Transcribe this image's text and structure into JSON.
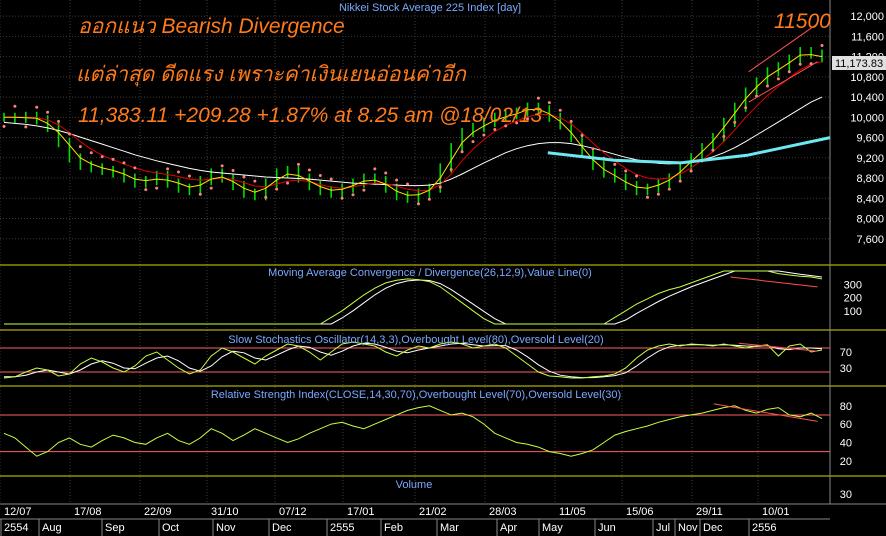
{
  "annotation": {
    "line1": "ออกแนว Bearish Divergence",
    "line2": "แต่ล่าสุด ดีดแรง เพราะค่าเงินเยนอ่อนค่าอีก",
    "line3": "11,383.11 +209.28 +1.87% at 8.25 am @18/02/13",
    "target": "11500"
  },
  "colors": {
    "background": "#000000",
    "grid": "#3a3a3a",
    "frame": "#d8d800",
    "price": "#00dd00",
    "ma_fast": "#ffe000",
    "ma_mid": "#e00000",
    "ma_slow": "#ffffff",
    "sar": "#ff8080",
    "forecast": "#6ee8f0",
    "indicator_line": "#c8ff40",
    "signal_line": "#ffffff",
    "level_line": "#ff6060",
    "trend_line": "#ff5050",
    "label_text": "#7aa8ff",
    "axis_text": "#ffffff",
    "last_price_box": "#e0e0e0",
    "text_overlay": "#ff7a1a"
  },
  "chart_data": {
    "type": "line",
    "title": "Nikkei Stock Average 225 Index [day]",
    "last_price_label": "11,173.83",
    "time_axis": {
      "top_row": [
        "12/07",
        "17/08",
        "22/09",
        "31/10",
        "07/12",
        "17/01",
        "21/02",
        "28/03",
        "11/05",
        "15/06",
        "29/11",
        "10/01"
      ],
      "bottom_row": [
        "2554",
        "Aug",
        "Sep",
        "Oct",
        "Nov",
        "Dec",
        "2555",
        "Feb",
        "Mar",
        "Apr",
        "May",
        "Jun",
        "Jul",
        "Nov",
        "Dec",
        "2556"
      ]
    },
    "panels": [
      {
        "name": "price",
        "ylim": [
          7200,
          12200
        ],
        "yticks": [
          "12,000",
          "11,600",
          "11,200",
          "10,800",
          "10,400",
          "10,000",
          "9,600",
          "9,200",
          "8,800",
          "8,400",
          "8,000",
          "7,600"
        ],
        "ytick_values": [
          12000,
          11600,
          11200,
          10800,
          10400,
          10000,
          9600,
          9200,
          8800,
          8400,
          8000,
          7600
        ],
        "close": [
          10000,
          9980,
          10020,
          9950,
          9800,
          9500,
          9200,
          9050,
          9000,
          8950,
          8900,
          8800,
          8700,
          8750,
          8850,
          8700,
          8600,
          8550,
          8750,
          8900,
          8800,
          8650,
          8500,
          8450,
          8700,
          8900,
          8950,
          8800,
          8650,
          8550,
          8500,
          8600,
          8700,
          8800,
          8750,
          8600,
          8450,
          8400,
          8500,
          8600,
          9000,
          9400,
          9700,
          9800,
          9900,
          10000,
          10050,
          10100,
          10200,
          10150,
          10000,
          9850,
          9600,
          9300,
          9050,
          8900,
          8800,
          8650,
          8550,
          8600,
          8700,
          8800,
          9000,
          9200,
          9400,
          9600,
          9900,
          10200,
          10500,
          10700,
          10900,
          11000,
          11150,
          11300,
          11250,
          11173.83
        ],
        "ma_fast": [
          10000,
          10000,
          9990,
          9980,
          9880,
          9700,
          9450,
          9200,
          9080,
          9000,
          8950,
          8880,
          8780,
          8750,
          8780,
          8760,
          8700,
          8620,
          8660,
          8780,
          8820,
          8730,
          8600,
          8520,
          8600,
          8760,
          8880,
          8850,
          8740,
          8630,
          8560,
          8580,
          8650,
          8740,
          8760,
          8680,
          8540,
          8460,
          8470,
          8560,
          8800,
          9150,
          9500,
          9700,
          9830,
          9940,
          10010,
          10070,
          10150,
          10160,
          10070,
          9920,
          9700,
          9420,
          9160,
          8970,
          8850,
          8720,
          8620,
          8600,
          8660,
          8760,
          8920,
          9120,
          9320,
          9530,
          9800,
          10080,
          10370,
          10600,
          10800,
          10940,
          11080,
          11230,
          11240,
          11200
        ],
        "ma_mid": [
          10000,
          10000,
          10000,
          9990,
          9950,
          9850,
          9700,
          9520,
          9370,
          9250,
          9160,
          9080,
          9000,
          8940,
          8900,
          8870,
          8830,
          8780,
          8760,
          8780,
          8800,
          8770,
          8710,
          8640,
          8630,
          8680,
          8740,
          8760,
          8730,
          8670,
          8620,
          8600,
          8620,
          8670,
          8700,
          8690,
          8640,
          8580,
          8550,
          8560,
          8670,
          8880,
          9140,
          9370,
          9560,
          9720,
          9840,
          9930,
          10010,
          10060,
          10050,
          9990,
          9870,
          9690,
          9490,
          9300,
          9140,
          8990,
          8870,
          8800,
          8780,
          8800,
          8880,
          9000,
          9150,
          9320,
          9520,
          9750,
          10000,
          10220,
          10430,
          10610,
          10780,
          10940,
          11050,
          11100
        ],
        "ma_slow": [
          9900,
          9880,
          9860,
          9830,
          9790,
          9740,
          9680,
          9610,
          9540,
          9470,
          9400,
          9330,
          9260,
          9200,
          9140,
          9090,
          9040,
          8990,
          8950,
          8920,
          8900,
          8880,
          8860,
          8840,
          8820,
          8810,
          8800,
          8790,
          8780,
          8760,
          8740,
          8720,
          8700,
          8690,
          8680,
          8670,
          8660,
          8650,
          8650,
          8660,
          8700,
          8780,
          8880,
          8990,
          9100,
          9200,
          9300,
          9380,
          9440,
          9480,
          9500,
          9500,
          9480,
          9440,
          9390,
          9330,
          9270,
          9210,
          9160,
          9120,
          9090,
          9080,
          9090,
          9120,
          9160,
          9220,
          9300,
          9400,
          9520,
          9650,
          9780,
          9910,
          10040,
          10170,
          10300,
          10400
        ],
        "forecast": {
          "x": [
            0.66,
            0.74,
            0.82,
            0.9,
            1.0
          ],
          "y": [
            9300,
            9150,
            9100,
            9250,
            9600
          ]
        },
        "trend_lines": [
          {
            "x": [
              0.902,
              0.985
            ],
            "y": [
              10900,
              11850
            ]
          },
          {
            "x": [
              0.902,
              0.985
            ],
            "y": [
              10300,
              11100
            ]
          }
        ]
      },
      {
        "name": "macd",
        "label": "Moving Average Convergence / Divergence(26,12,9),Value Line(0)",
        "ylim": [
          0,
          400
        ],
        "yticks": [
          "300",
          "200",
          "100"
        ],
        "ytick_values": [
          300,
          200,
          100
        ],
        "macd": [
          -200,
          -220,
          -250,
          -300,
          -380,
          -420,
          -430,
          -410,
          -390,
          -370,
          -350,
          -330,
          -320,
          -310,
          -300,
          -290,
          -280,
          -270,
          -260,
          -250,
          -240,
          -230,
          -220,
          -210,
          -200,
          -190,
          -170,
          -150,
          -120,
          -80,
          -30,
          20,
          80,
          140,
          190,
          230,
          250,
          260,
          255,
          240,
          200,
          140,
          80,
          20,
          -40,
          -100,
          -160,
          -200,
          -220,
          -230,
          -230,
          -220,
          -200,
          -170,
          -130,
          -80,
          -30,
          20,
          70,
          110,
          150,
          180,
          200,
          230,
          260,
          290,
          320,
          350,
          370,
          360,
          330,
          300,
          290,
          280,
          275,
          260
        ],
        "signal": [
          -180,
          -200,
          -220,
          -250,
          -300,
          -350,
          -390,
          -405,
          -400,
          -390,
          -375,
          -360,
          -345,
          -330,
          -318,
          -305,
          -295,
          -283,
          -273,
          -263,
          -253,
          -243,
          -233,
          -223,
          -213,
          -202,
          -190,
          -172,
          -150,
          -120,
          -80,
          -35,
          20,
          80,
          140,
          190,
          225,
          245,
          252,
          248,
          225,
          180,
          125,
          70,
          15,
          -40,
          -100,
          -150,
          -185,
          -210,
          -222,
          -223,
          -215,
          -198,
          -172,
          -138,
          -95,
          -50,
          0,
          45,
          90,
          130,
          165,
          200,
          230,
          260,
          290,
          320,
          345,
          355,
          345,
          325,
          308,
          295,
          285,
          275
        ],
        "trend_line": {
          "x": [
            0.88,
            0.985
          ],
          "y": [
            355,
            280
          ]
        }
      },
      {
        "name": "stochastic",
        "label": "Slow Stochastics Oscillator(14,3,3),Overbought Level(80),Oversold Level(20)",
        "ylim": [
          0,
          110
        ],
        "levels": [
          80,
          20
        ],
        "yticks": [
          "70",
          "30"
        ],
        "ytick_values": [
          70,
          30
        ],
        "k": [
          5,
          8,
          20,
          30,
          25,
          10,
          15,
          40,
          55,
          45,
          30,
          20,
          35,
          60,
          70,
          50,
          30,
          15,
          25,
          60,
          80,
          70,
          55,
          40,
          60,
          75,
          90,
          85,
          70,
          50,
          70,
          90,
          95,
          90,
          85,
          70,
          60,
          75,
          85,
          80,
          90,
          95,
          90,
          80,
          85,
          90,
          80,
          60,
          40,
          20,
          10,
          8,
          5,
          5,
          8,
          10,
          15,
          30,
          55,
          75,
          85,
          90,
          85,
          90,
          88,
          85,
          90,
          85,
          80,
          85,
          88,
          60,
          85,
          90,
          70,
          75
        ],
        "d": [
          8,
          8,
          12,
          20,
          25,
          20,
          15,
          25,
          40,
          48,
          42,
          30,
          28,
          42,
          55,
          60,
          48,
          30,
          22,
          35,
          58,
          72,
          68,
          55,
          50,
          62,
          75,
          85,
          82,
          70,
          62,
          72,
          85,
          92,
          90,
          82,
          72,
          68,
          75,
          80,
          85,
          90,
          92,
          88,
          85,
          86,
          86,
          75,
          58,
          38,
          22,
          12,
          8,
          6,
          6,
          8,
          11,
          18,
          35,
          55,
          72,
          83,
          87,
          88,
          88,
          87,
          88,
          87,
          85,
          84,
          86,
          78,
          76,
          80,
          80,
          78
        ],
        "trend_line": {
          "x": [
            0.89,
            0.985
          ],
          "y": [
            92,
            72
          ]
        }
      },
      {
        "name": "rsi",
        "label": "Relative Strength Index(CLOSE,14,30,70),Overbought Level(70),Oversold Level(30)",
        "ylim": [
          10,
          95
        ],
        "levels": [
          70,
          30
        ],
        "yticks": [
          "80",
          "60",
          "40",
          "20"
        ],
        "ytick_values": [
          80,
          60,
          40,
          20
        ],
        "rsi": [
          50,
          45,
          35,
          25,
          30,
          40,
          45,
          38,
          35,
          42,
          48,
          45,
          40,
          38,
          45,
          50,
          42,
          38,
          45,
          55,
          50,
          42,
          48,
          55,
          50,
          45,
          40,
          44,
          50,
          55,
          60,
          62,
          58,
          55,
          60,
          65,
          70,
          75,
          78,
          80,
          75,
          70,
          72,
          68,
          60,
          50,
          45,
          40,
          38,
          35,
          30,
          28,
          25,
          28,
          32,
          40,
          48,
          52,
          55,
          58,
          62,
          65,
          68,
          70,
          72,
          75,
          78,
          80,
          75,
          72,
          76,
          78,
          70,
          68,
          72,
          66
        ],
        "trend_line": {
          "x": [
            0.86,
            0.985
          ],
          "y": [
            82,
            63
          ]
        }
      },
      {
        "name": "volume",
        "label": "Volume",
        "yticks": [
          "30"
        ],
        "ytick_values": [
          30
        ]
      }
    ]
  }
}
